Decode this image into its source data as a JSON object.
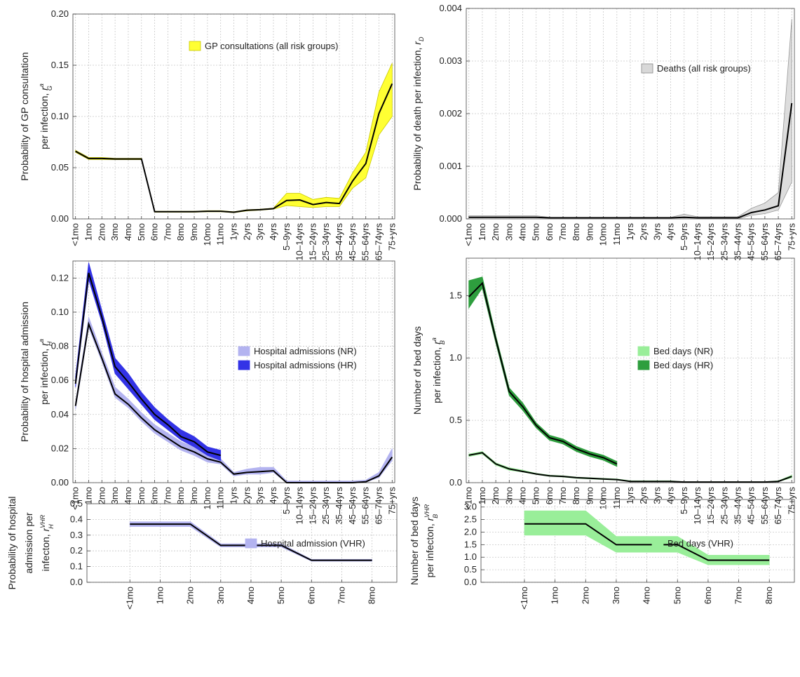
{
  "age_groups": [
    "<1mo",
    "1mo",
    "2mo",
    "3mo",
    "4mo",
    "5mo",
    "6mo",
    "7mo",
    "8mo",
    "9mo",
    "10mo",
    "11mo",
    "1yrs",
    "2yrs",
    "3yrs",
    "4yrs",
    "5–9yrs",
    "10–14yrs",
    "15–24yrs",
    "25–34yrs",
    "35–44yrs",
    "45–54yrs",
    "55–64yrs",
    "65–74yrs",
    "75+yrs"
  ],
  "infant_groups": [
    "<1mo",
    "1mo",
    "2mo",
    "3mo",
    "4mo",
    "5mo",
    "6mo",
    "7mo",
    "8mo"
  ],
  "colors": {
    "gp": "#ffff33",
    "gp_edge": "#c8c800",
    "death": "#d8d8d8",
    "death_edge": "#888888",
    "hosp_nr": "#b3b3f0",
    "hosp_hr": "#3333e6",
    "bed_nr": "#99ee99",
    "bed_hr": "#2e9e3e",
    "median": "#000000"
  },
  "chart_data": [
    {
      "id": "gp",
      "type": "area",
      "ylabel_lines": [
        "Probability of GP consultation",
        "per infection,"
      ],
      "ylabel_symbol": "r",
      "ylabel_sub": "G",
      "ylabel_sup": "a",
      "ylim": [
        0,
        0.2
      ],
      "yticks": [
        "0.00",
        "0.05",
        "0.10",
        "0.15",
        "0.20"
      ],
      "ytick_values": [
        0,
        0.05,
        0.1,
        0.15,
        0.2
      ],
      "legend": [
        "GP consultations (all risk groups)"
      ],
      "series": [
        {
          "median": [
            0.066,
            0.059,
            0.059,
            0.0585,
            0.0585,
            0.0585,
            0.007,
            0.007,
            0.007,
            0.007,
            0.0075,
            0.0075,
            0.0065,
            0.0085,
            0.009,
            0.01,
            0.018,
            0.0185,
            0.014,
            0.016,
            0.015,
            0.037,
            0.054,
            0.103,
            0.132
          ],
          "lower": [
            0.065,
            0.058,
            0.058,
            0.0578,
            0.0578,
            0.0578,
            0.0065,
            0.0065,
            0.0065,
            0.0065,
            0.007,
            0.007,
            0.006,
            0.0078,
            0.0085,
            0.0095,
            0.013,
            0.012,
            0.011,
            0.012,
            0.012,
            0.03,
            0.04,
            0.082,
            0.1
          ],
          "upper": [
            0.067,
            0.06,
            0.06,
            0.0592,
            0.0592,
            0.0592,
            0.0075,
            0.0075,
            0.0075,
            0.0075,
            0.008,
            0.008,
            0.007,
            0.009,
            0.0095,
            0.0105,
            0.025,
            0.025,
            0.019,
            0.021,
            0.02,
            0.045,
            0.065,
            0.124,
            0.152
          ]
        }
      ]
    },
    {
      "id": "death",
      "type": "area",
      "ylabel_lines": [
        "Probability of death per infection,"
      ],
      "ylabel_symbol": "r",
      "ylabel_sub": "D",
      "ylabel_sup": "",
      "ylim": [
        0,
        0.004
      ],
      "yticks": [
        "0.000",
        "0.001",
        "0.002",
        "0.003",
        "0.004"
      ],
      "ytick_values": [
        0,
        0.001,
        0.002,
        0.003,
        0.004
      ],
      "legend": [
        "Deaths (all risk groups)"
      ],
      "series": [
        {
          "median": [
            3e-05,
            3e-05,
            3e-05,
            3e-05,
            3e-05,
            3e-05,
            2e-05,
            2e-05,
            2e-05,
            2e-05,
            2e-05,
            2e-05,
            2e-05,
            2e-05,
            2e-05,
            2e-05,
            3e-05,
            2e-05,
            2e-05,
            2e-05,
            2e-05,
            0.00012,
            0.00017,
            0.00025,
            0.0022
          ],
          "lower": [
            0,
            0,
            0,
            0,
            0,
            0,
            0,
            0,
            0,
            0,
            0,
            0,
            0,
            0,
            0,
            0,
            0,
            0,
            0,
            0,
            0,
            7e-05,
            0.0001,
            0.00017,
            0.0007
          ],
          "upper": [
            6e-05,
            6e-05,
            6e-05,
            6e-05,
            6e-05,
            6e-05,
            3e-05,
            3e-05,
            3e-05,
            3e-05,
            3e-05,
            3e-05,
            3e-05,
            3e-05,
            3e-05,
            3e-05,
            9e-05,
            4e-05,
            4e-05,
            4e-05,
            4e-05,
            0.0002,
            0.0003,
            0.0005,
            0.0038
          ]
        }
      ]
    },
    {
      "id": "hosp",
      "type": "area",
      "ylabel_lines": [
        "Probability of hospital admission",
        "per infection,"
      ],
      "ylabel_symbol": "r",
      "ylabel_sub": "H",
      "ylabel_sup": "a",
      "ylim": [
        0,
        0.13
      ],
      "yticks": [
        "0.00",
        "0.02",
        "0.04",
        "0.06",
        "0.08",
        "0.10",
        "0.12"
      ],
      "ytick_values": [
        0,
        0.02,
        0.04,
        0.06,
        0.08,
        0.1,
        0.12
      ],
      "legend": [
        "Hospital admissions (NR)",
        "Hospital admissions (HR)"
      ],
      "series": [
        {
          "median": [
            0.045,
            0.093,
            0.073,
            0.052,
            0.046,
            0.038,
            0.031,
            0.026,
            0.021,
            0.018,
            0.014,
            0.012,
            0.005,
            0.006,
            0.0065,
            0.007,
            0,
            0,
            0,
            0,
            0,
            0,
            0.0005,
            0.004,
            0.015
          ],
          "lower": [
            0.043,
            0.091,
            0.071,
            0.05,
            0.044,
            0.036,
            0.029,
            0.024,
            0.019,
            0.016,
            0.012,
            0.011,
            0.004,
            0.005,
            0.005,
            0.006,
            0,
            0,
            0,
            0,
            0,
            0,
            0.0003,
            0.003,
            0.013
          ],
          "upper": [
            0.047,
            0.097,
            0.076,
            0.056,
            0.049,
            0.041,
            0.034,
            0.029,
            0.024,
            0.021,
            0.016,
            0.014,
            0.006,
            0.008,
            0.009,
            0.009,
            0.001,
            0.001,
            0.001,
            0.001,
            0.001,
            0.001,
            0.0015,
            0.006,
            0.02
          ]
        },
        {
          "median": [
            0.058,
            0.123,
            0.097,
            0.068,
            0.059,
            0.049,
            0.04,
            0.034,
            0.027,
            0.024,
            0.018,
            0.016
          ],
          "lower": [
            0.056,
            0.119,
            0.094,
            0.064,
            0.055,
            0.046,
            0.037,
            0.031,
            0.025,
            0.021,
            0.016,
            0.013
          ],
          "upper": [
            0.062,
            0.129,
            0.101,
            0.073,
            0.064,
            0.053,
            0.044,
            0.037,
            0.031,
            0.027,
            0.021,
            0.019
          ]
        }
      ]
    },
    {
      "id": "bed",
      "type": "area",
      "ylabel_lines": [
        "Number of bed days",
        "per infection,"
      ],
      "ylabel_symbol": "r",
      "ylabel_sub": "B",
      "ylabel_sup": "a",
      "ylim": [
        0,
        1.8
      ],
      "yticks": [
        "0.0",
        "0.5",
        "1.0",
        "1.5"
      ],
      "ytick_values": [
        0,
        0.5,
        1,
        1.5
      ],
      "legend": [
        "Bed days (NR)",
        "Bed days (HR)"
      ],
      "series": [
        {
          "median": [
            0.22,
            0.24,
            0.15,
            0.11,
            0.09,
            0.07,
            0.055,
            0.05,
            0.04,
            0.035,
            0.03,
            0.025,
            0.01,
            0.01,
            0.01,
            0.01,
            0.005,
            0.005,
            0.005,
            0.005,
            0.005,
            0.005,
            0.005,
            0.01,
            0.05
          ],
          "lower": [
            0.21,
            0.23,
            0.14,
            0.1,
            0.085,
            0.065,
            0.05,
            0.045,
            0.035,
            0.03,
            0.025,
            0.02,
            0.008,
            0.008,
            0.008,
            0.008,
            0.003,
            0.003,
            0.003,
            0.003,
            0.003,
            0.003,
            0.003,
            0.008,
            0.04
          ],
          "upper": [
            0.23,
            0.25,
            0.16,
            0.12,
            0.1,
            0.075,
            0.06,
            0.055,
            0.045,
            0.04,
            0.035,
            0.03,
            0.015,
            0.015,
            0.015,
            0.015,
            0.008,
            0.008,
            0.008,
            0.008,
            0.008,
            0.008,
            0.008,
            0.015,
            0.06
          ]
        },
        {
          "median": [
            1.49,
            1.6,
            1.15,
            0.73,
            0.61,
            0.46,
            0.36,
            0.33,
            0.27,
            0.23,
            0.2,
            0.15
          ],
          "lower": [
            1.4,
            1.56,
            1.12,
            0.7,
            0.58,
            0.44,
            0.34,
            0.31,
            0.25,
            0.21,
            0.18,
            0.13
          ],
          "upper": [
            1.62,
            1.65,
            1.18,
            0.76,
            0.64,
            0.48,
            0.38,
            0.35,
            0.29,
            0.25,
            0.22,
            0.17
          ]
        }
      ]
    },
    {
      "id": "hosp_vhr",
      "type": "area",
      "ylabel_lines": [
        "Probability of hospital",
        "admission per",
        "infecton,"
      ],
      "ylabel_symbol": "r",
      "ylabel_sub": "H",
      "ylabel_sup": "VHR",
      "ylim": [
        0,
        0.5
      ],
      "yticks": [
        "0.0",
        "0.1",
        "0.2",
        "0.3",
        "0.4",
        "0.5"
      ],
      "ytick_values": [
        0,
        0.1,
        0.2,
        0.3,
        0.4,
        0.5
      ],
      "legend": [
        "Hospital admission (VHR)"
      ],
      "series": [
        {
          "median": [
            0.37,
            0.37,
            0.37,
            0.235,
            0.235,
            0.235,
            0.14,
            0.14,
            0.14
          ],
          "lower": [
            0.355,
            0.355,
            0.355,
            0.225,
            0.225,
            0.225,
            0.134,
            0.134,
            0.134
          ],
          "upper": [
            0.385,
            0.385,
            0.385,
            0.245,
            0.245,
            0.245,
            0.146,
            0.146,
            0.146
          ]
        }
      ]
    },
    {
      "id": "bed_vhr",
      "type": "area",
      "ylabel_lines": [
        "Number of bed days",
        "per infecton,"
      ],
      "ylabel_symbol": "r",
      "ylabel_sub": "B",
      "ylabel_sup": "VHR",
      "ylim": [
        0,
        3.3
      ],
      "yticks": [
        "0.0",
        "0.5",
        "1.0",
        "1.5",
        "2.0",
        "2.5",
        "3.0"
      ],
      "ytick_values": [
        0,
        0.5,
        1,
        1.5,
        2,
        2.5,
        3
      ],
      "legend": [
        "Bed days (VHR)"
      ],
      "series": [
        {
          "median": [
            2.33,
            2.33,
            2.33,
            1.5,
            1.5,
            1.5,
            0.88,
            0.88,
            0.88
          ],
          "lower": [
            1.88,
            1.88,
            1.88,
            1.2,
            1.2,
            1.2,
            0.7,
            0.7,
            0.7
          ],
          "upper": [
            2.85,
            2.85,
            2.85,
            1.83,
            1.83,
            1.83,
            1.08,
            1.08,
            1.08
          ]
        }
      ]
    }
  ]
}
